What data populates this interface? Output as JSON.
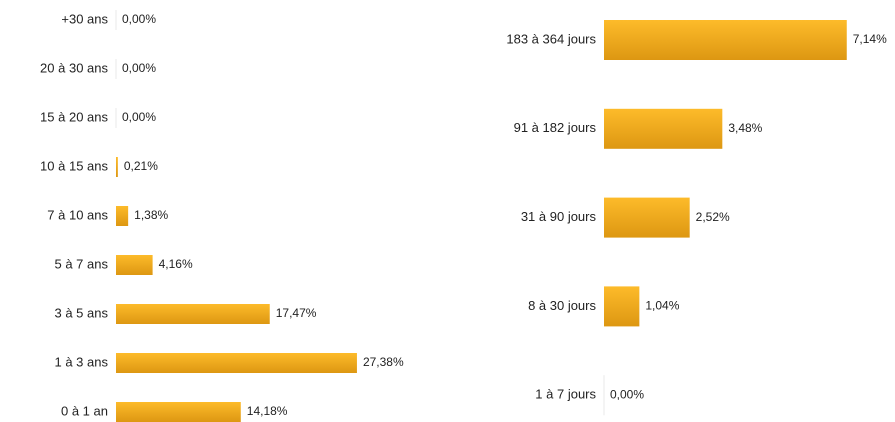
{
  "chart_data": [
    {
      "type": "barh",
      "categories": [
        "+30 ans",
        "20 à 30 ans",
        "15 à 20 ans",
        "10 à 15 ans",
        "7 à 10 ans",
        "5 à 7 ans",
        "3 à 5 ans",
        "1 à 3 ans",
        "0 à 1 an"
      ],
      "values": [
        0,
        0,
        0,
        0.21,
        1.38,
        4.16,
        17.47,
        27.38,
        14.18
      ],
      "value_labels": [
        "0,00%",
        "0,00%",
        "0,00%",
        "0,21%",
        "1,38%",
        "4,16%",
        "17,47%",
        "27,38%",
        "14,18%"
      ],
      "color": "#f2aa1c",
      "xlim": [
        0,
        30
      ]
    },
    {
      "type": "barh",
      "categories": [
        "183 à 364 jours",
        "91 à 182 jours",
        "31 à 90 jours",
        "8 à 30 jours",
        "1 à 7 jours"
      ],
      "values": [
        7.14,
        3.48,
        2.52,
        1.04,
        0
      ],
      "value_labels": [
        "7,14%",
        "3,48%",
        "2,52%",
        "1,04%",
        "0,00%"
      ],
      "color": "#f2aa1c",
      "xlim": [
        0,
        7.5
      ]
    }
  ]
}
